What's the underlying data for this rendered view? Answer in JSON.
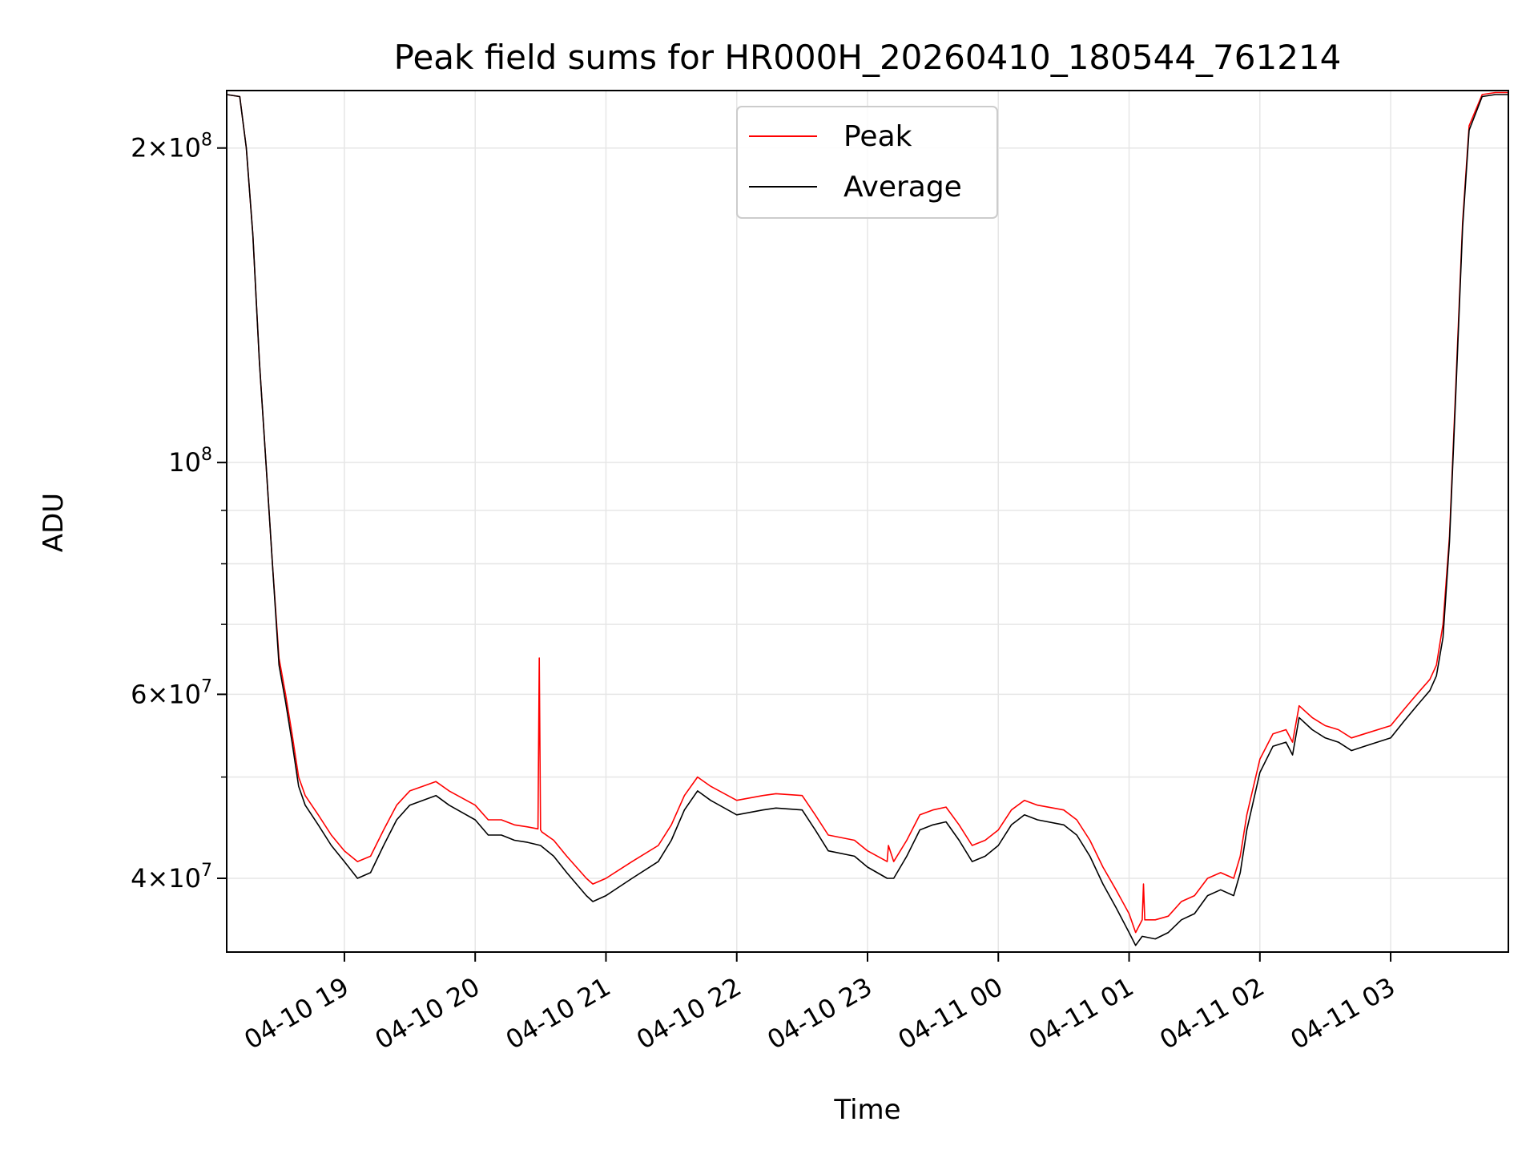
{
  "chart_data": {
    "type": "line",
    "title": "Peak field sums for HR000H_20260410_180544_761214",
    "xlabel": "Time",
    "ylabel": "ADU",
    "yscale": "log",
    "ylim": [
      34000000,
      227000000
    ],
    "xlim": [
      18.1,
      27.9
    ],
    "grid": true,
    "legend_position": "top-center",
    "x_ticks": [
      {
        "value": 19,
        "label": "04-10 19"
      },
      {
        "value": 20,
        "label": "04-10 20"
      },
      {
        "value": 21,
        "label": "04-10 21"
      },
      {
        "value": 22,
        "label": "04-10 22"
      },
      {
        "value": 23,
        "label": "04-10 23"
      },
      {
        "value": 24,
        "label": "04-11 00"
      },
      {
        "value": 25,
        "label": "04-11 01"
      },
      {
        "value": 26,
        "label": "04-11 02"
      },
      {
        "value": 27,
        "label": "04-11 03"
      }
    ],
    "y_ticks": [
      {
        "value": 40000000,
        "mant": "4",
        "exp": "7"
      },
      {
        "value": 60000000,
        "mant": "6",
        "exp": "7"
      },
      {
        "value": 100000000,
        "mant": "",
        "exp": "8"
      },
      {
        "value": 200000000,
        "mant": "2",
        "exp": "8"
      }
    ],
    "y_minor_ticks": [
      50000000,
      70000000,
      80000000,
      90000000
    ],
    "series": [
      {
        "name": "Peak",
        "color": "#ff0000",
        "x": [
          18.1,
          18.2,
          18.25,
          18.3,
          18.35,
          18.4,
          18.45,
          18.5,
          18.55,
          18.6,
          18.65,
          18.7,
          18.8,
          18.9,
          19.0,
          19.1,
          19.2,
          19.3,
          19.4,
          19.5,
          19.6,
          19.7,
          19.8,
          20.0,
          20.1,
          20.2,
          20.3,
          20.4,
          20.48,
          20.49,
          20.5,
          20.51,
          20.6,
          20.7,
          20.85,
          20.9,
          21.0,
          21.2,
          21.4,
          21.5,
          21.6,
          21.7,
          21.8,
          22.0,
          22.2,
          22.3,
          22.5,
          22.6,
          22.7,
          22.9,
          23.0,
          23.15,
          23.16,
          23.2,
          23.3,
          23.4,
          23.5,
          23.6,
          23.7,
          23.8,
          23.9,
          24.0,
          24.1,
          24.2,
          24.3,
          24.5,
          24.6,
          24.7,
          24.8,
          24.9,
          25.0,
          25.05,
          25.1,
          25.11,
          25.12,
          25.2,
          25.3,
          25.4,
          25.5,
          25.6,
          25.7,
          25.8,
          25.85,
          25.9,
          26.0,
          26.1,
          26.2,
          26.25,
          26.3,
          26.4,
          26.5,
          26.6,
          26.7,
          26.8,
          27.0,
          27.1,
          27.2,
          27.3,
          27.35,
          27.4,
          27.45,
          27.5,
          27.55,
          27.6,
          27.7,
          27.8,
          27.9
        ],
        "values": [
          225000000,
          224000000,
          200000000,
          165000000,
          125000000,
          100000000,
          80000000,
          65000000,
          60000000,
          55000000,
          50000000,
          48000000,
          46000000,
          44000000,
          42500000,
          41500000,
          42000000,
          44500000,
          47000000,
          48500000,
          49000000,
          49500000,
          48500000,
          47000000,
          45500000,
          45500000,
          45000000,
          44800000,
          44600000,
          65000000,
          44500000,
          44300000,
          43500000,
          42000000,
          40000000,
          39500000,
          40000000,
          41500000,
          43000000,
          45000000,
          48000000,
          50000000,
          49000000,
          47500000,
          48000000,
          48200000,
          48000000,
          46000000,
          44000000,
          43500000,
          42500000,
          41500000,
          43000000,
          41500000,
          43500000,
          46000000,
          46500000,
          46800000,
          45000000,
          43000000,
          43500000,
          44500000,
          46500000,
          47500000,
          47000000,
          46500000,
          45500000,
          43500000,
          41000000,
          39000000,
          37000000,
          35500000,
          36500000,
          39500000,
          36500000,
          36500000,
          36800000,
          38000000,
          38500000,
          40000000,
          40500000,
          40000000,
          42000000,
          46000000,
          52000000,
          55000000,
          55500000,
          54000000,
          58500000,
          57000000,
          56000000,
          55500000,
          54500000,
          55000000,
          56000000,
          58000000,
          60000000,
          62000000,
          64000000,
          70000000,
          85000000,
          120000000,
          170000000,
          210000000,
          225000000,
          226000000,
          226000000
        ]
      },
      {
        "name": "Average",
        "color": "#000000",
        "x": [
          18.1,
          18.2,
          18.25,
          18.3,
          18.35,
          18.4,
          18.45,
          18.5,
          18.55,
          18.6,
          18.65,
          18.7,
          18.8,
          18.9,
          19.0,
          19.1,
          19.2,
          19.3,
          19.4,
          19.5,
          19.6,
          19.7,
          19.8,
          20.0,
          20.1,
          20.2,
          20.3,
          20.4,
          20.5,
          20.6,
          20.7,
          20.85,
          20.9,
          21.0,
          21.2,
          21.4,
          21.5,
          21.6,
          21.7,
          21.8,
          22.0,
          22.2,
          22.3,
          22.5,
          22.6,
          22.7,
          22.9,
          23.0,
          23.15,
          23.2,
          23.3,
          23.4,
          23.5,
          23.6,
          23.7,
          23.8,
          23.9,
          24.0,
          24.1,
          24.2,
          24.3,
          24.5,
          24.6,
          24.7,
          24.8,
          24.9,
          25.0,
          25.05,
          25.1,
          25.2,
          25.3,
          25.4,
          25.5,
          25.6,
          25.7,
          25.8,
          25.85,
          25.9,
          26.0,
          26.1,
          26.2,
          26.25,
          26.3,
          26.4,
          26.5,
          26.6,
          26.7,
          26.8,
          27.0,
          27.1,
          27.2,
          27.3,
          27.35,
          27.4,
          27.45,
          27.5,
          27.55,
          27.6,
          27.7,
          27.8,
          27.9
        ],
        "values": [
          225000000,
          224000000,
          200000000,
          165000000,
          125000000,
          100000000,
          80000000,
          64000000,
          59000000,
          54000000,
          49000000,
          47000000,
          45000000,
          43000000,
          41500000,
          40000000,
          40500000,
          43000000,
          45500000,
          47000000,
          47500000,
          48000000,
          47000000,
          45500000,
          44000000,
          44000000,
          43500000,
          43300000,
          43000000,
          42000000,
          40500000,
          38500000,
          38000000,
          38500000,
          40000000,
          41500000,
          43500000,
          46500000,
          48500000,
          47500000,
          46000000,
          46500000,
          46700000,
          46500000,
          44500000,
          42500000,
          42000000,
          41000000,
          40000000,
          40000000,
          42000000,
          44500000,
          45000000,
          45300000,
          43500000,
          41500000,
          42000000,
          43000000,
          45000000,
          46000000,
          45500000,
          45000000,
          44000000,
          42000000,
          39500000,
          37500000,
          35500000,
          34500000,
          35200000,
          35000000,
          35500000,
          36500000,
          37000000,
          38500000,
          39000000,
          38500000,
          40500000,
          44500000,
          50500000,
          53500000,
          54000000,
          52500000,
          57000000,
          55500000,
          54500000,
          54000000,
          53000000,
          53500000,
          54500000,
          56500000,
          58500000,
          60500000,
          62500000,
          68000000,
          84000000,
          118000000,
          168000000,
          208000000,
          224000000,
          225000000,
          225000000
        ]
      }
    ]
  }
}
